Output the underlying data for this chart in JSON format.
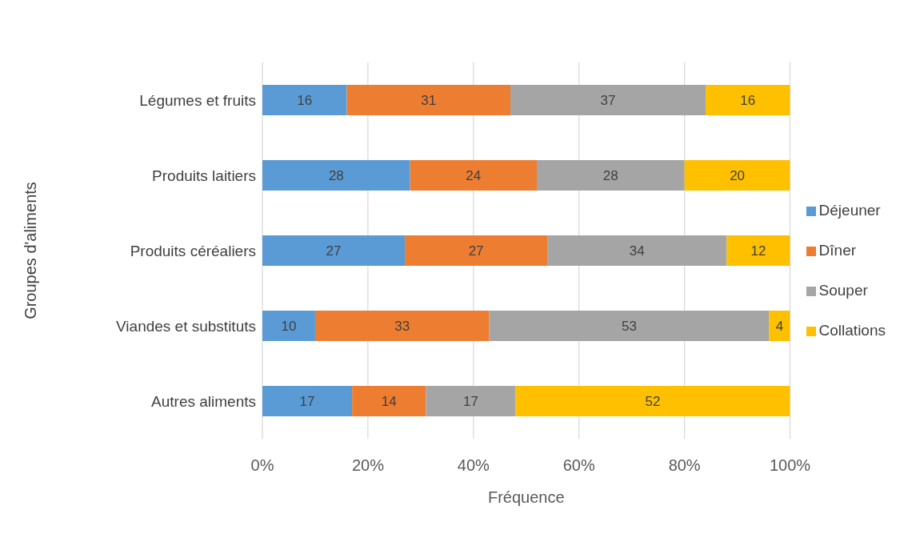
{
  "chart_data": {
    "type": "bar",
    "orientation": "horizontal",
    "stacked": true,
    "xlabel": "Fréquence",
    "ylabel": "Groupes d'aliments",
    "categories": [
      "Légumes et fruits",
      "Produits laitiers",
      "Produits céréaliers",
      "Viandes et substituts",
      "Autres aliments"
    ],
    "series": [
      {
        "name": "Déjeuner",
        "color": "#5b9bd5",
        "values": [
          16,
          28,
          27,
          10,
          17
        ]
      },
      {
        "name": "Dîner",
        "color": "#ed7d31",
        "values": [
          31,
          24,
          27,
          33,
          14
        ]
      },
      {
        "name": "Souper",
        "color": "#a5a5a5",
        "values": [
          37,
          28,
          34,
          53,
          17
        ]
      },
      {
        "name": "Collations",
        "color": "#ffc000",
        "values": [
          16,
          20,
          12,
          4,
          52
        ]
      }
    ],
    "xlim": [
      0,
      100
    ],
    "xticks": [
      {
        "value": 0,
        "label": "0%"
      },
      {
        "value": 20,
        "label": "20%"
      },
      {
        "value": 40,
        "label": "40%"
      },
      {
        "value": 60,
        "label": "60%"
      },
      {
        "value": 80,
        "label": "80%"
      },
      {
        "value": 100,
        "label": "100%"
      }
    ],
    "grid": "x",
    "legend": "right",
    "data_labels": true
  }
}
